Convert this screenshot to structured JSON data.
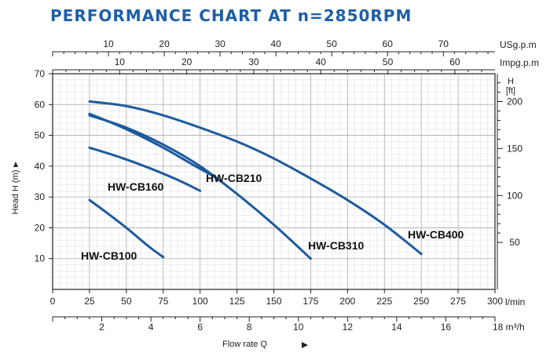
{
  "title": "PERFORMANCE CHART AT n=2850RPM",
  "colors": {
    "title": "#1d5fa8",
    "curve": "#1c5a9e",
    "grid_major": "#a9a9a9",
    "grid_minor": "#dcdcdc",
    "axis": "#222222"
  },
  "chart_data": {
    "type": "line",
    "title": "PERFORMANCE CHART AT n=2850RPM",
    "xlabel": "Flow rate Q",
    "ylabel": "Head H (m)",
    "x_unit": "l/min",
    "xlim": [
      0,
      300
    ],
    "ylim": [
      0,
      70
    ],
    "grid": true,
    "x_ticks": [
      "0",
      "25",
      "50",
      "75",
      "100",
      "125",
      "150",
      "175",
      "200",
      "225",
      "250",
      "275",
      "300"
    ],
    "y_ticks": [
      "10",
      "20",
      "30",
      "40",
      "50",
      "60",
      "70"
    ],
    "secondary_axes": {
      "usg": {
        "label": "USg.p.m",
        "ticks": [
          "10",
          "20",
          "30",
          "40",
          "50",
          "60",
          "70"
        ]
      },
      "impg": {
        "label": "Impg.p.m",
        "ticks": [
          "10",
          "20",
          "30",
          "40",
          "50",
          "60"
        ]
      },
      "m3h": {
        "label": "18 m³/h",
        "ticks": [
          "2",
          "4",
          "6",
          "8",
          "10",
          "12",
          "14",
          "16"
        ]
      },
      "feet": {
        "label": "H\n[ft]",
        "ticks": [
          "50",
          "100",
          "150",
          "200"
        ]
      }
    },
    "series": [
      {
        "name": "HW-CB100",
        "points": [
          [
            25,
            29
          ],
          [
            35,
            25.5
          ],
          [
            50,
            20
          ],
          [
            65,
            14
          ],
          [
            75,
            10.5
          ]
        ]
      },
      {
        "name": "HW-CB160",
        "points": [
          [
            25,
            46
          ],
          [
            45,
            43
          ],
          [
            65,
            39.5
          ],
          [
            85,
            35.5
          ],
          [
            100,
            32
          ]
        ]
      },
      {
        "name": "HW-CB210",
        "points": [
          [
            25,
            57
          ],
          [
            50,
            52
          ],
          [
            75,
            46
          ],
          [
            95,
            40.5
          ],
          [
            110,
            36.5
          ]
        ]
      },
      {
        "name": "HW-CB310",
        "points": [
          [
            25,
            56.5
          ],
          [
            50,
            52.5
          ],
          [
            75,
            47
          ],
          [
            100,
            40
          ],
          [
            125,
            31
          ],
          [
            150,
            21
          ],
          [
            175,
            10
          ]
        ]
      },
      {
        "name": "HW-CB400",
        "points": [
          [
            25,
            61
          ],
          [
            50,
            59.5
          ],
          [
            75,
            56.5
          ],
          [
            100,
            52.5
          ],
          [
            125,
            48
          ],
          [
            150,
            42.5
          ],
          [
            175,
            36
          ],
          [
            200,
            29
          ],
          [
            225,
            21
          ],
          [
            250,
            11.5
          ]
        ]
      }
    ]
  }
}
